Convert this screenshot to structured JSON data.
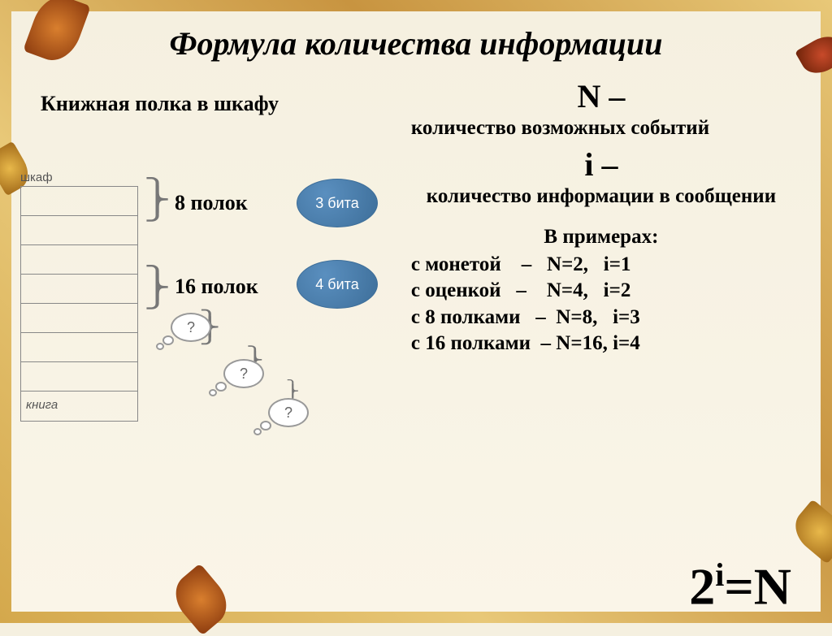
{
  "title": "Формула количества информации",
  "left_subtitle": "Книжная полка в шкафу",
  "shelf_header": "шкаф",
  "book_label": "книга",
  "shelf_rows": 8,
  "row1_label": "8 полок",
  "row2_label": "16 полок",
  "badge1": "3 бита",
  "badge2": "4 бита",
  "badge_bg": "#5a8fbf",
  "badge_border": "#3d6e99",
  "thought_text": "?",
  "var_n": "N –",
  "def_n": "количество возможных событий",
  "var_i": "i –",
  "def_i": "количество информации в сообщении",
  "examples_head": "В примерах:",
  "examples": [
    "с монетой    –   N=2,   i=1",
    "с оценкой   –    N=4,   i=2",
    "с 8 полками   –  N=8,   i=3",
    "с 16 полками  – N=16, i=4"
  ],
  "formula_base": "2",
  "formula_exp": "i",
  "formula_rhs": "=N",
  "colors": {
    "bg": "#f7f1de",
    "text": "#000000"
  }
}
